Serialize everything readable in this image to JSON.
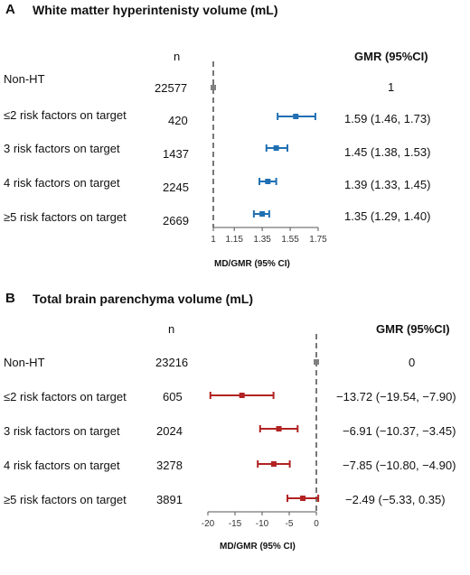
{
  "chart_data": [
    {
      "type": "forest",
      "panel_label": "A",
      "title": "White matter hyperintenisty volume (mL)",
      "n_header": "n",
      "effect_header": "GMR (95%CI)",
      "xlabel": "MD/GMR (95% CI)",
      "xlim": [
        1,
        1.75
      ],
      "xticks": [
        1,
        1.15,
        1.35,
        1.55,
        1.75
      ],
      "reference_line": 1,
      "marker_color": "#1f6fb2",
      "reference_color": "#808080",
      "rows": [
        {
          "label": "Non-HT",
          "n": "22577",
          "est": 1,
          "lo": 1,
          "hi": 1,
          "text": "1",
          "reference": true
        },
        {
          "label": "≤2 risk factors on target",
          "n": "420",
          "est": 1.59,
          "lo": 1.46,
          "hi": 1.73,
          "text": "1.59 (1.46, 1.73)"
        },
        {
          "label": "3 risk factors on target",
          "n": "1437",
          "est": 1.45,
          "lo": 1.38,
          "hi": 1.53,
          "text": "1.45 (1.38, 1.53)"
        },
        {
          "label": "4 risk factors on target",
          "n": "2245",
          "est": 1.39,
          "lo": 1.33,
          "hi": 1.45,
          "text": "1.39 (1.33, 1.45)"
        },
        {
          "label": "≥5 risk factors on target",
          "n": "2669",
          "est": 1.35,
          "lo": 1.29,
          "hi": 1.4,
          "text": "1.35 (1.29, 1.40)"
        }
      ]
    },
    {
      "type": "forest",
      "panel_label": "B",
      "title": "Total brain parenchyma volume (mL)",
      "n_header": "n",
      "effect_header": "GMR (95%CI)",
      "xlabel": "MD/GMR (95% CI)",
      "xlim": [
        -20,
        0
      ],
      "xticks": [
        -20,
        -15,
        -10,
        -5,
        0
      ],
      "reference_line": 0,
      "marker_color": "#b22222",
      "reference_color": "#808080",
      "rows": [
        {
          "label": "Non-HT",
          "n": "23216",
          "est": 0,
          "lo": 0,
          "hi": 0,
          "text": "0",
          "reference": true
        },
        {
          "label": "≤2 risk factors on target",
          "n": "605",
          "est": -13.72,
          "lo": -19.54,
          "hi": -7.9,
          "text": "−13.72 (−19.54, −7.90)"
        },
        {
          "label": "3 risk factors on target",
          "n": "2024",
          "est": -6.91,
          "lo": -10.37,
          "hi": -3.45,
          "text": "−6.91 (−10.37, −3.45)"
        },
        {
          "label": "4 risk factors on target",
          "n": "3278",
          "est": -7.85,
          "lo": -10.8,
          "hi": -4.9,
          "text": "−7.85 (−10.80, −4.90)"
        },
        {
          "label": "≥5 risk factors on target",
          "n": "3891",
          "est": -2.49,
          "lo": -5.33,
          "hi": 0.35,
          "text": "−2.49 (−5.33, 0.35)"
        }
      ]
    }
  ]
}
